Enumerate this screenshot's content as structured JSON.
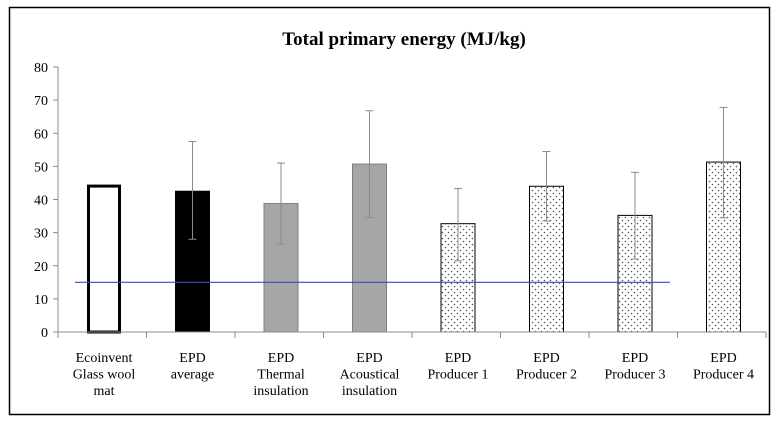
{
  "chart_data": {
    "type": "bar",
    "title": "Total primary energy (MJ/kg)",
    "xlabel": "",
    "ylabel": "",
    "ylim": [
      0,
      80
    ],
    "yticks": [
      0,
      10,
      20,
      30,
      40,
      50,
      60,
      70,
      80
    ],
    "grid": false,
    "legend": "none",
    "categories": [
      [
        "Ecoinvent",
        "Glass wool",
        "mat"
      ],
      [
        "EPD",
        "average"
      ],
      [
        "EPD",
        "Thermal",
        "insulation"
      ],
      [
        "EPD",
        "Acoustical",
        "insulation"
      ],
      [
        "EPD",
        "Producer 1"
      ],
      [
        "EPD",
        "Producer 2"
      ],
      [
        "EPD",
        "Producer 3"
      ],
      [
        "EPD",
        "Producer 4"
      ]
    ],
    "values": [
      44.5,
      42.5,
      38.8,
      50.7,
      32.7,
      44.0,
      35.2,
      51.3
    ],
    "error_low": [
      null,
      28,
      26.5,
      34.5,
      21.5,
      33.5,
      22,
      34.5
    ],
    "error_high": [
      null,
      57.5,
      51,
      66.8,
      43.3,
      54.5,
      48.2,
      67.8
    ],
    "bar_styles": [
      "outline",
      "solid-black",
      "solid-gray",
      "solid-gray",
      "dotted",
      "dotted",
      "dotted",
      "dotted"
    ],
    "reference_line": {
      "value": 15,
      "from_category": 0,
      "to_category": 6,
      "color": "#2f4fbf"
    },
    "colors": {
      "black": "#000000",
      "gray": "#a6a6a6",
      "dot": "#555555",
      "error_bar": "#8c8c8c",
      "axis": "#8c8c8c"
    }
  }
}
